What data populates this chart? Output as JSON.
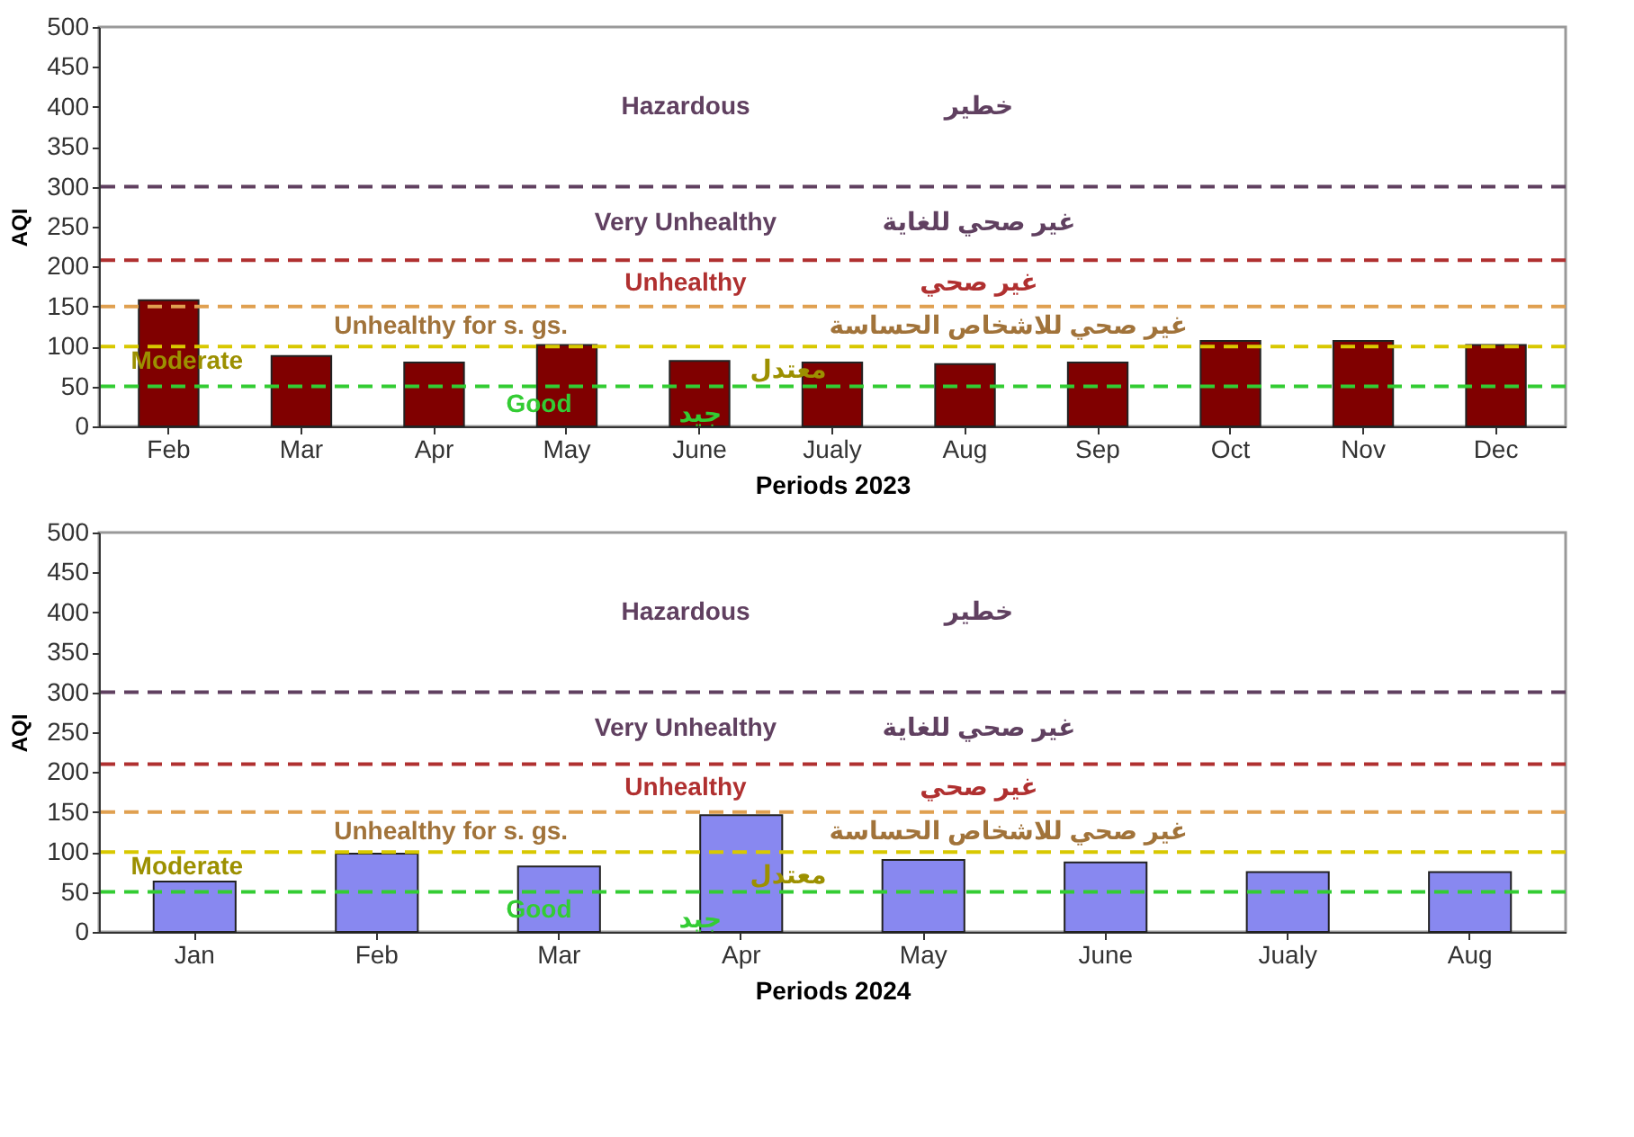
{
  "chart_data": [
    {
      "type": "bar",
      "xlabel": "Periods 2023",
      "ylabel": "AQI",
      "categories": [
        "Feb",
        "Mar",
        "Apr",
        "May",
        "June",
        "Jualy",
        "Aug",
        "Sep",
        "Oct",
        "Nov",
        "Dec"
      ],
      "series": [
        {
          "color": "#800000",
          "values": [
            158,
            88,
            80,
            102,
            82,
            80,
            78,
            80,
            107,
            107,
            102
          ]
        }
      ],
      "ylim": [
        0,
        500
      ],
      "yticks": [
        0,
        50,
        100,
        150,
        200,
        250,
        300,
        350,
        400,
        450,
        500
      ],
      "grid": false,
      "line_style": "dashed",
      "ref_lines": [
        {
          "axis": "y",
          "value": 50,
          "color": "#33cc33"
        },
        {
          "axis": "y",
          "value": 100,
          "color": "#d8c800"
        },
        {
          "axis": "y",
          "value": 150,
          "color": "#e0a050"
        },
        {
          "axis": "y",
          "value": 208,
          "color": "#b03030"
        },
        {
          "axis": "y",
          "value": 300,
          "color": "#604060"
        }
      ],
      "annotations": [
        "Hazardous",
        "خطير",
        "Very Unhealthy",
        "غير صحي للغاية",
        "Unhealthy",
        "غير صحي",
        "Unhealthy for s. gs.",
        "غير صحي للاشخاص الحساسة",
        "Moderate",
        "معتدل",
        "Good",
        "جيد"
      ]
    },
    {
      "type": "bar",
      "xlabel": "Periods 2024",
      "ylabel": "AQI",
      "categories": [
        "Jan",
        "Feb",
        "Mar",
        "Apr",
        "May",
        "June",
        "Jualy",
        "Aug"
      ],
      "series": [
        {
          "color": "#8888f0",
          "values": [
            63,
            98,
            82,
            146,
            90,
            87,
            75,
            75
          ]
        }
      ],
      "ylim": [
        0,
        500
      ],
      "yticks": [
        0,
        50,
        100,
        150,
        200,
        250,
        300,
        350,
        400,
        450,
        500
      ],
      "grid": false,
      "line_style": "dashed",
      "ref_lines": [
        {
          "axis": "y",
          "value": 50,
          "color": "#33cc33"
        },
        {
          "axis": "y",
          "value": 100,
          "color": "#d8c800"
        },
        {
          "axis": "y",
          "value": 150,
          "color": "#e0a050"
        },
        {
          "axis": "y",
          "value": 210,
          "color": "#b03030"
        },
        {
          "axis": "y",
          "value": 300,
          "color": "#604060"
        }
      ],
      "annotations": [
        "Hazardous",
        "خطير",
        "Very Unhealthy",
        "غير صحي للغاية",
        "Unhealthy",
        "غير صحي",
        "Unhealthy for s. gs.",
        "غير صحي للاشخاص الحساسة",
        "Moderate",
        "معتدل",
        "Good",
        "جيد"
      ]
    }
  ]
}
